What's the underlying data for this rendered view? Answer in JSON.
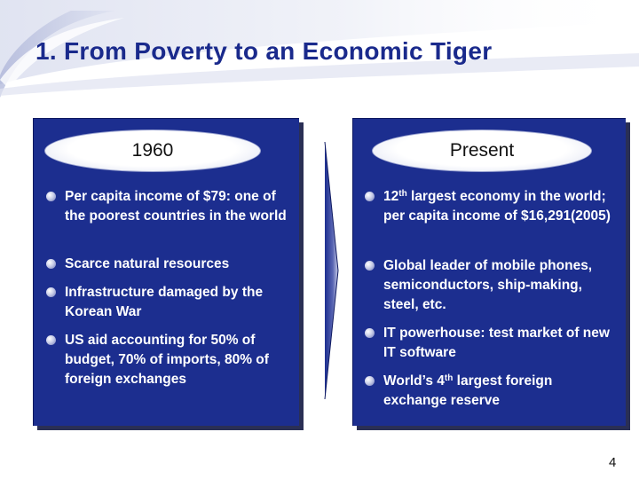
{
  "slide": {
    "title": "1.  From Poverty to an Economic Tiger",
    "page_number": "4"
  },
  "left_panel": {
    "heading": "1960",
    "bullets": [
      {
        "text": "Per capita income of $79: one of the poorest countries in the world"
      },
      {
        "text": "Scarce natural resources"
      },
      {
        "text": "Infrastructure damaged by the Korean War"
      },
      {
        "text": "US aid accounting for 50% of budget, 70% of imports, 80% of foreign exchanges"
      }
    ]
  },
  "right_panel": {
    "heading": "Present",
    "bullets": [
      {
        "pre": "12",
        "sup": "th",
        "post": " largest economy in the world; per capita income of $16,291(2005)"
      },
      {
        "text": "Global leader of mobile phones, semiconductors, ship-making, steel, etc."
      },
      {
        "text": "IT powerhouse: test market of new IT software"
      },
      {
        "pre": "World’s 4",
        "sup": "th",
        "post": " largest foreign exchange reserve"
      }
    ]
  },
  "colors": {
    "panel": "#1c2e8f",
    "title": "#1a2a8c"
  }
}
